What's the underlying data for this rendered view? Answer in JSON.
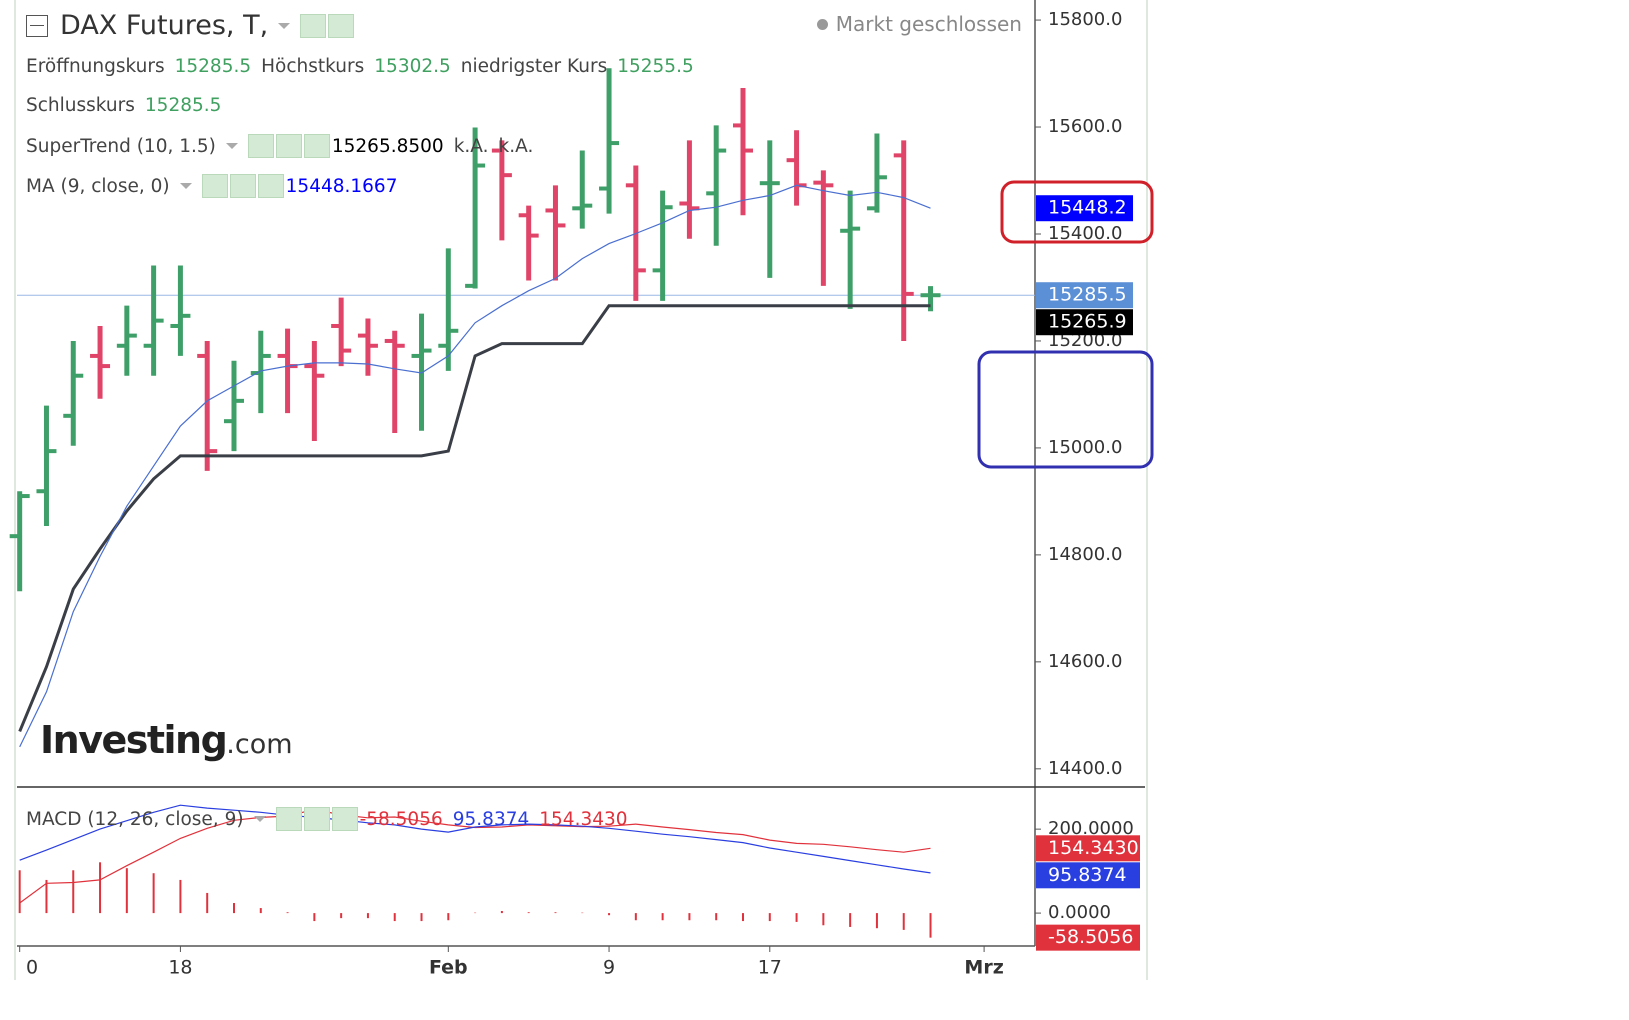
{
  "header": {
    "status": "Markt geschlossen",
    "ohlc": [
      {
        "label": "Eröffnungskurs",
        "value": "15285.5"
      },
      {
        "label": "Höchstkurs",
        "value": "15302.5"
      },
      {
        "label": "niedrigster Kurs",
        "value": "15255.5"
      },
      {
        "label": "Schlusskurs",
        "value": "15285.5"
      }
    ],
    "watermark": [
      "Investing",
      ".com"
    ]
  },
  "chart_data": [
    {
      "type": "ohlc",
      "title": "DAX Futures, T,",
      "up_color": "#3f9f68",
      "down_color": "#e04468",
      "xlim": [
        -0.1,
        37.9
      ],
      "ylim": [
        14366,
        15837.5
      ],
      "yticks": [
        {
          "value": 14400,
          "label": "14400.0"
        },
        {
          "value": 14600,
          "label": "14600.0"
        },
        {
          "value": 14800,
          "label": "14800.0"
        },
        {
          "value": 15000,
          "label": "15000.0"
        },
        {
          "value": 15200,
          "label": "15200.0"
        },
        {
          "value": 15400,
          "label": "15400.0"
        },
        {
          "value": 15600,
          "label": "15600.0"
        },
        {
          "value": 15800,
          "label": "15800.0"
        }
      ],
      "open": [
        14835,
        14919,
        15060,
        15172,
        15191,
        15191,
        15228,
        15172,
        15050,
        15140,
        15172,
        15153,
        15228,
        15210,
        15200,
        15172,
        15191,
        15303,
        15556,
        15435,
        15444,
        15448,
        15485,
        15491,
        15332,
        15457,
        15476,
        15603,
        15495,
        15538,
        15496,
        15406,
        15448,
        15547,
        15285.5
      ],
      "high": [
        14919,
        15079,
        15200,
        15228,
        15266,
        15341,
        15341,
        15200,
        15163,
        15219,
        15223,
        15200,
        15281,
        15242,
        15219,
        15251,
        15373,
        15599,
        15575,
        15453,
        15491,
        15556,
        15710,
        15528,
        15481,
        15575,
        15603,
        15673,
        15575,
        15594,
        15519,
        15481,
        15588,
        15575,
        15302.5
      ],
      "low": [
        14732,
        14854,
        15004,
        15092,
        15135,
        15135,
        15172,
        14957,
        14994,
        15065,
        15065,
        15013,
        15153,
        15135,
        15028,
        15032,
        15144,
        15298,
        15388,
        15313,
        15313,
        15410,
        15438,
        15275,
        15275,
        15391,
        15378,
        15435,
        15318,
        15453,
        15303,
        15260,
        15440,
        15200,
        15255.5
      ],
      "close": [
        14910,
        14994,
        15135,
        15153,
        15210,
        15238,
        15247,
        14994,
        15088,
        15172,
        15153,
        15135,
        15182,
        15191,
        15191,
        15182,
        15219,
        15528,
        15510,
        15397,
        15416,
        15453,
        15570,
        15332,
        15450,
        15448,
        15556,
        15556,
        15495,
        15491,
        15491,
        15410,
        15506,
        15288,
        15285.5
      ],
      "close_label": "15285.5",
      "close_color": "#5b8fd6",
      "price_line_color": "#9bb8e6",
      "series": [
        {
          "name": "SuperTrend (10, 1.5)",
          "color": "#3a3e46",
          "width": 3,
          "values": [
            14470,
            14591,
            14736,
            14811,
            14882,
            14942,
            14985,
            14985,
            14985,
            14985,
            14985,
            14985,
            14985,
            14985,
            14985,
            14985,
            14994,
            15172,
            15195,
            15195,
            15195,
            15195,
            15265.85,
            15265.85,
            15265.85,
            15265.85,
            15265.85,
            15265.85,
            15265.85,
            15265.85,
            15265.85,
            15265.85,
            15265.85,
            15265.85,
            15265.85
          ],
          "legend_values": [
            "15265.8500",
            "k.A.",
            "k.A."
          ],
          "last_label": "15265.9",
          "label_color": "#000000"
        },
        {
          "name": "MA (9, close, 0)",
          "color": "#4a6fd0",
          "width": 1.2,
          "values": [
            14441,
            14544,
            14694,
            14797,
            14891,
            14966,
            15041,
            15088,
            15116,
            15144,
            15153,
            15159,
            15159,
            15157,
            15148,
            15140,
            15172,
            15234,
            15266,
            15294,
            15317,
            15354,
            15382,
            15401,
            15421,
            15444,
            15450,
            15463,
            15472,
            15491,
            15481,
            15472,
            15478,
            15468,
            15448.1667
          ],
          "legend_values": [
            "15448.1667"
          ],
          "last_label": "15448.2",
          "label_color": "#0000ff"
        }
      ]
    },
    {
      "type": "macd",
      "title": "MACD (12, 26, close, 9)",
      "xlim": [
        -0.1,
        37.9
      ],
      "xticks": [
        {
          "value": 0,
          "label": "0"
        },
        {
          "value": 6,
          "label": "18"
        },
        {
          "value": 16,
          "label": "Feb"
        },
        {
          "value": 22,
          "label": "9"
        },
        {
          "value": 28,
          "label": "17"
        },
        {
          "value": 36,
          "label": "Mrz"
        }
      ],
      "ylim": [
        -76,
        298
      ],
      "yticks": [
        {
          "value": 0,
          "label": "0.0000"
        },
        {
          "value": 200,
          "label": "200.0000"
        }
      ],
      "histogram": {
        "color": "#e0323c",
        "last_label": "-58.5056",
        "values": [
          102,
          79,
          102,
          121,
          107,
          95,
          79,
          48,
          24,
          12,
          2,
          -19,
          -12,
          -12,
          -19,
          -19,
          -17,
          1,
          5,
          2,
          2,
          1,
          -5,
          -17,
          -17,
          -17,
          -17,
          -19,
          -19,
          -21,
          -29,
          -33,
          -36,
          -40,
          -58.5056
        ]
      },
      "macd": {
        "color": "#2a3fe0",
        "last_label": "95.8374",
        "values": [
          126,
          150,
          175,
          200,
          220,
          240,
          257,
          250,
          245,
          240,
          233,
          228,
          222,
          215,
          210,
          200,
          193,
          205,
          210,
          212,
          210,
          207,
          202,
          195,
          188,
          182,
          175,
          168,
          155,
          145,
          135,
          125,
          115,
          105,
          95.8374
        ]
      },
      "signal": {
        "color": "#e0323c",
        "last_label": "154.3430",
        "values": [
          24,
          71,
          73,
          79,
          113,
          145,
          178,
          202,
          221,
          228,
          231,
          247,
          234,
          227,
          229,
          219,
          210,
          204,
          205,
          210,
          208,
          206,
          207,
          212,
          205,
          199,
          192,
          187,
          174,
          166,
          164,
          158,
          151,
          145,
          154.343
        ]
      }
    }
  ]
}
